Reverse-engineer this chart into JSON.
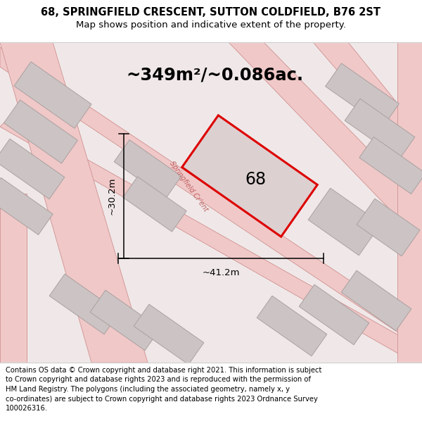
{
  "title_line1": "68, SPRINGFIELD CRESCENT, SUTTON COLDFIELD, B76 2ST",
  "title_line2": "Map shows position and indicative extent of the property.",
  "area_text": "~349m²/~0.086ac.",
  "number_label": "68",
  "dim_width": "~41.2m",
  "dim_height": "~30.2m",
  "footer_lines": [
    "Contains OS data © Crown copyright and database right 2021. This information is subject",
    "to Crown copyright and database rights 2023 and is reproduced with the permission of",
    "HM Land Registry. The polygons (including the associated geometry, namely x, y",
    "co-ordinates) are subject to Crown copyright and database rights 2023 Ordnance Survey",
    "100026316."
  ],
  "map_bg": "#f0e8e8",
  "plot_fill": "#ddd0d0",
  "plot_edge": "#dd0000",
  "road_color": "#f0c8c8",
  "road_stroke": "#d09090",
  "grey_fill": "#ccc4c4",
  "grey_edge": "#aaa0a0",
  "title_bg": "#ffffff",
  "footer_bg": "#ffffff",
  "road_label_color": "#c06060",
  "separator_color": "#cccccc"
}
